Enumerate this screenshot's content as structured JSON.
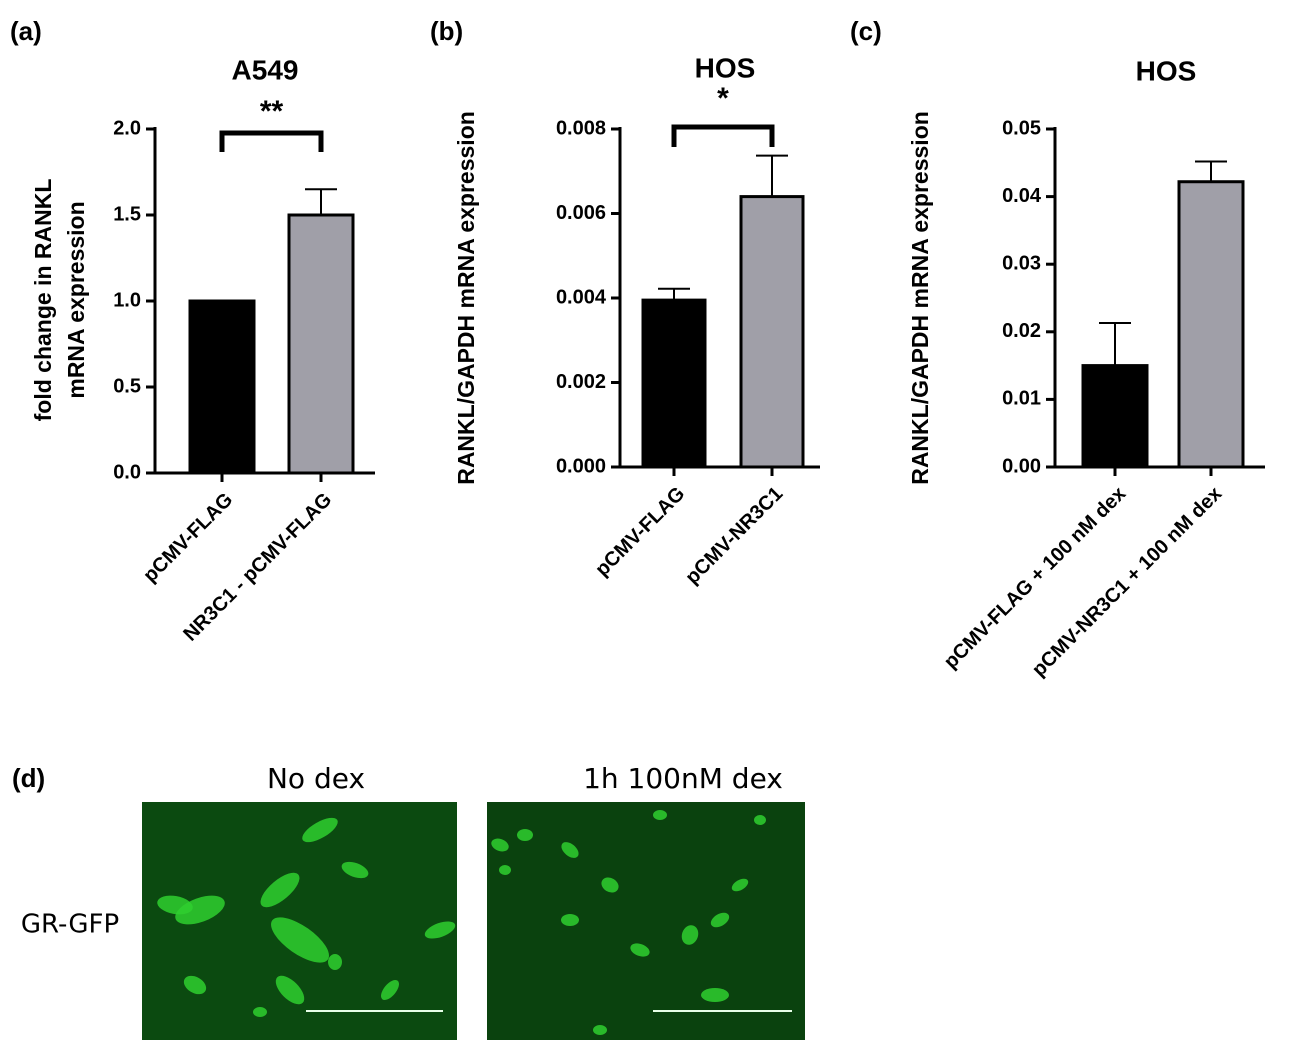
{
  "chart_data": [
    {
      "type": "bar",
      "panel_label": "(a)",
      "title": "A549",
      "ylabel": [
        "fold change in RANKL",
        "mRNA expression"
      ],
      "categories": [
        "pCMV-FLAG",
        "NR3C1 - pCMV-FLAG"
      ],
      "values": [
        1.0,
        1.5
      ],
      "errors": [
        null,
        0.15
      ],
      "colors": [
        "#000000",
        "#a09fa8"
      ],
      "ylim": [
        0,
        2.0
      ],
      "yticks": [
        {
          "value": 0,
          "label": "0.0"
        },
        0.5,
        {
          "value": 1,
          "label": "1.0"
        },
        1.5,
        {
          "value": 2,
          "label": "2.0"
        }
      ],
      "annotation": "**"
    },
    {
      "type": "bar",
      "panel_label": "(b)",
      "title": "HOS",
      "ylabel": [
        "RANKL/GAPDH mRNA expression"
      ],
      "categories": [
        "pCMV-FLAG",
        "pCMV-NR3C1"
      ],
      "values": [
        0.00395,
        0.0064
      ],
      "errors": [
        0.00027,
        0.00097
      ],
      "colors": [
        "#000000",
        "#a09fa8"
      ],
      "ylim": [
        0,
        0.008
      ],
      "yticks": [
        {
          "value": 0,
          "label": "0.000"
        },
        {
          "value": 0.002,
          "label": "0.002"
        },
        {
          "value": 0.004,
          "label": "0.004"
        },
        {
          "value": 0.006,
          "label": "0.006"
        },
        {
          "value": 0.008,
          "label": "0.008"
        }
      ],
      "annotation": "*"
    },
    {
      "type": "bar",
      "panel_label": "(c)",
      "title": "HOS",
      "ylabel": [
        "RANKL/GAPDH mRNA expression"
      ],
      "categories": [
        "pCMV-FLAG + 100 nM dex",
        "pCMV-NR3C1 + 100 nM dex"
      ],
      "values": [
        0.015,
        0.0422
      ],
      "errors": [
        0.0063,
        0.003
      ],
      "colors": [
        "#000000",
        "#a09fa8"
      ],
      "ylim": [
        0,
        0.05
      ],
      "yticks": [
        {
          "value": 0,
          "label": "0.00"
        },
        {
          "value": 0.01,
          "label": "0.01"
        },
        {
          "value": 0.02,
          "label": "0.02"
        },
        {
          "value": 0.03,
          "label": "0.03"
        },
        {
          "value": 0.04,
          "label": "0.04"
        },
        {
          "value": 0.05,
          "label": "0.05"
        }
      ]
    }
  ],
  "panel_d": {
    "panel_label": "(d)",
    "column_titles": [
      "No dex",
      "1h 100nM dex"
    ],
    "row_label": "GR-GFP"
  }
}
